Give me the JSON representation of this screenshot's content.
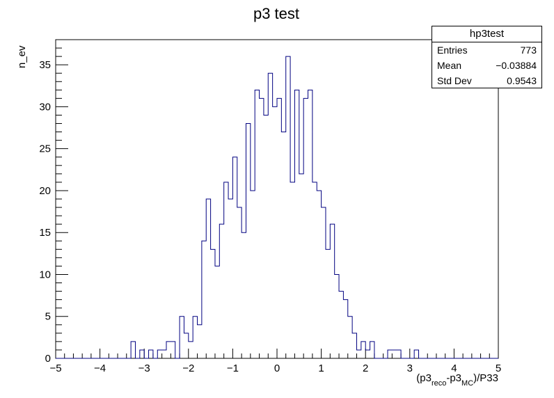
{
  "chart_data": {
    "type": "histogram",
    "title": "p3 test",
    "xlabel": "(p3",
    "xlabel_sub1": "reco",
    "xlabel_mid": "-p3",
    "xlabel_sub2": "MC",
    "xlabel_end": ")/P33",
    "ylabel": "n_ev",
    "xlim": [
      -5,
      5
    ],
    "ylim": [
      0,
      38
    ],
    "bin_width": 0.1,
    "bin_start": -5,
    "x_ticks": [
      -5,
      -4,
      -3,
      -2,
      -1,
      0,
      1,
      2,
      3,
      4,
      5
    ],
    "x_tick_labels": [
      "−5",
      "−4",
      "−3",
      "−2",
      "−1",
      "0",
      "1",
      "2",
      "3",
      "4",
      "5"
    ],
    "y_ticks": [
      0,
      5,
      10,
      15,
      20,
      25,
      30,
      35
    ],
    "y_tick_labels": [
      "0",
      "5",
      "10",
      "15",
      "20",
      "25",
      "30",
      "35"
    ],
    "line_color": "#000080",
    "values": [
      0,
      0,
      0,
      0,
      0,
      0,
      0,
      0,
      0,
      0,
      0,
      0,
      0,
      0,
      0,
      0,
      0,
      2,
      0,
      1,
      0,
      1,
      0,
      1,
      1,
      2,
      2,
      0,
      5,
      3,
      2,
      5,
      4,
      14,
      19,
      13,
      11,
      16,
      21,
      19,
      24,
      18,
      15,
      28,
      20,
      32,
      31,
      29,
      34,
      30,
      31,
      27,
      36,
      21,
      32,
      22,
      31,
      32,
      21,
      20,
      18,
      13,
      16,
      10,
      8,
      7,
      5,
      3,
      1,
      2,
      1,
      2,
      0,
      0,
      0,
      1,
      1,
      1,
      0,
      0,
      0,
      1,
      0,
      0,
      0,
      0,
      0,
      0,
      0,
      0,
      0,
      0,
      0,
      0,
      0,
      0,
      0,
      0,
      0,
      0
    ]
  },
  "stats": {
    "title": "hp3test",
    "rows": [
      {
        "label": "Entries",
        "value": "773"
      },
      {
        "label": "Mean",
        "value": "−0.03884"
      },
      {
        "label": "Std Dev",
        "value": "0.9543"
      }
    ]
  }
}
